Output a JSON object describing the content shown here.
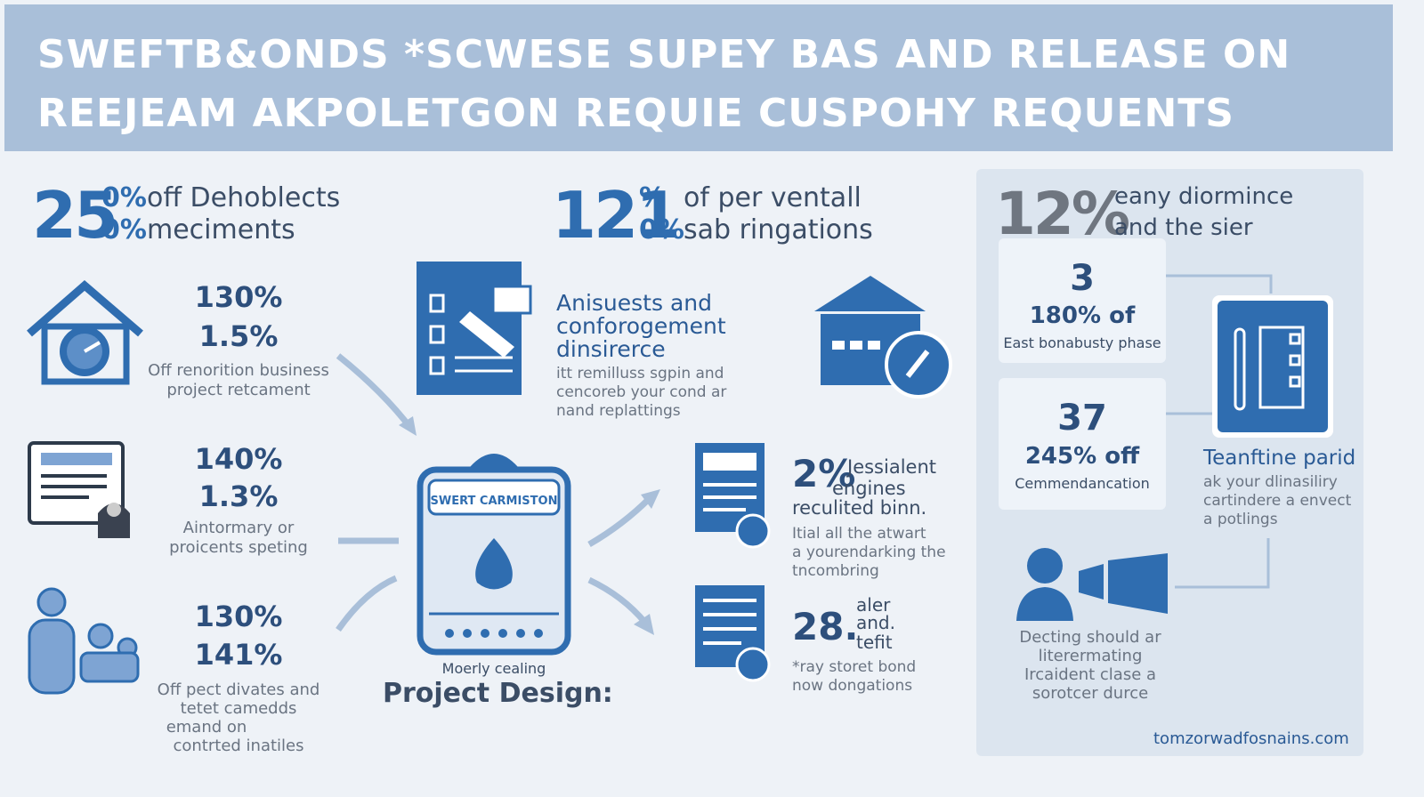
{
  "header": {
    "lines": [
      "SWEFTB&ONDS *SCWESE SUPEY BAS AND RELEASE ON",
      "REEJEAM AKPOLETGON REQUIE CUSPOHY REQUENTS"
    ]
  },
  "left": {
    "stat": {
      "big": "25",
      "pcts": [
        "0%",
        "0%"
      ],
      "lines": [
        "off Dehoblects",
        "meciments"
      ]
    },
    "items": [
      {
        "nums": [
          "130%",
          "1.5%"
        ],
        "lines": [
          "Off renorition business",
          "project retcament"
        ]
      },
      {
        "nums": [
          "140%",
          "1.3%"
        ],
        "lines": [
          "Aintormary or",
          "proicents speting"
        ]
      },
      {
        "nums": [
          "130%",
          "141%"
        ],
        "lines": [
          "Off pect divates and",
          "tetet camedds",
          "emand on",
          "contrted inatiles"
        ]
      }
    ]
  },
  "middle": {
    "stat": {
      "big": "121",
      "pcts": [
        "%",
        "0%"
      ],
      "lines": [
        "of per ventall",
        "sab ringations"
      ]
    },
    "feature": {
      "title": [
        "Anisuests and",
        "conforogement",
        "dinsirerce"
      ],
      "lines": [
        "itt remilluss sgpin and",
        "cencoreb your cond ar",
        "nand replattings"
      ]
    },
    "clipboard": {
      "label": "SWERT CARMISTON",
      "caption": "Moerly cealing",
      "title": "Project Design:"
    },
    "items": [
      {
        "num": "2%",
        "title": [
          "Jessialent",
          "engines",
          "reculited binn."
        ],
        "lines": [
          "Itial all the atwart",
          "a yourendarking the",
          "tncombring"
        ]
      },
      {
        "num": "28.",
        "title": [
          "aler",
          "and.",
          "tefit"
        ],
        "lines": [
          "*ray storet bond",
          "now dongations"
        ]
      }
    ]
  },
  "right": {
    "stat": {
      "big": "12%",
      "lines": [
        "eany diormince",
        "and the sier"
      ]
    },
    "cards": [
      {
        "num": "3",
        "pct": "180% of",
        "label": "East bonabusty phase"
      },
      {
        "num": "37",
        "pct": "245% off",
        "label": "Cemmendancation"
      }
    ],
    "feature": {
      "title": "Teanftine parid",
      "lines": [
        "ak your dlinasiliry",
        "cartindere a envect",
        "a potlings"
      ]
    },
    "person": {
      "lines": [
        "Decting should ar",
        "literermating",
        "Ircaident clase a",
        "sorotcer durce"
      ]
    },
    "url": "tomzorwadfosnains.com"
  }
}
